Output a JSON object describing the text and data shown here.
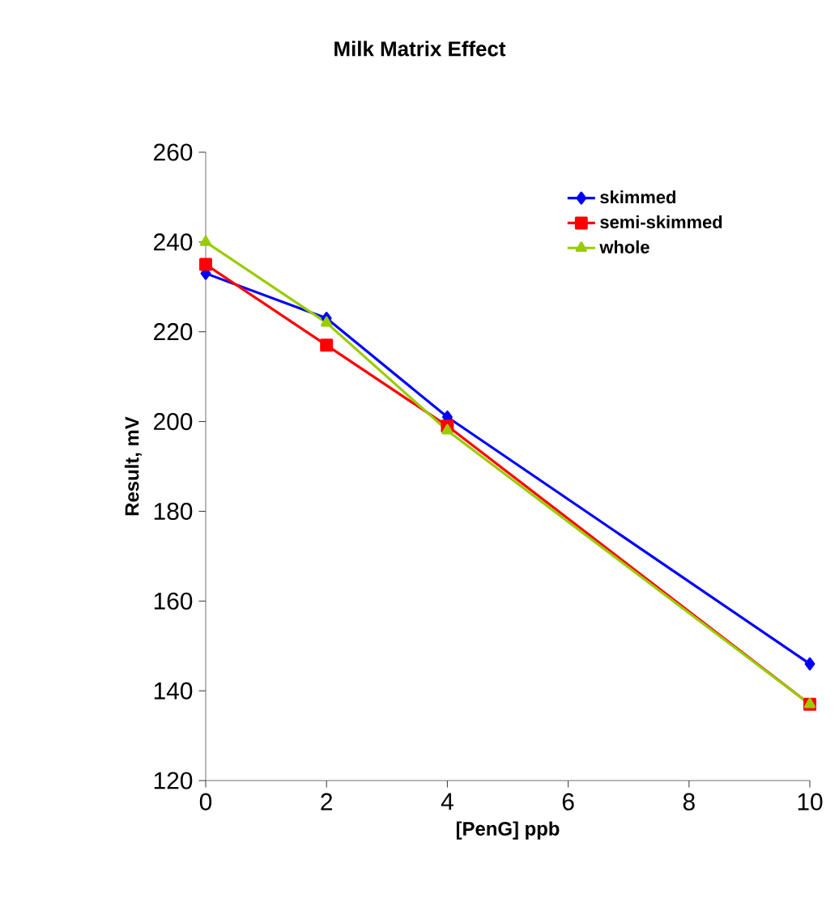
{
  "chart_data": {
    "type": "line",
    "title": "Milk Matrix Effect",
    "xlabel": "[PenG] ppb",
    "ylabel": "Result, mV",
    "x": [
      0,
      2,
      4,
      10
    ],
    "series": [
      {
        "name": "skimmed",
        "color": "#0000ff",
        "marker": "diamond",
        "values": [
          233,
          223,
          201,
          146
        ]
      },
      {
        "name": "semi-skimmed",
        "color": "#ff0000",
        "marker": "square",
        "values": [
          235,
          217,
          199,
          137
        ]
      },
      {
        "name": "whole",
        "color": "#99cc00",
        "marker": "triangle",
        "values": [
          240,
          222,
          198,
          137
        ]
      }
    ],
    "xlim": [
      0,
      10
    ],
    "xticks": [
      0,
      2,
      4,
      6,
      8,
      10
    ],
    "ylim": [
      120,
      260
    ],
    "yticks": [
      120,
      140,
      160,
      180,
      200,
      220,
      240,
      260
    ],
    "grid": false,
    "legend": "top right",
    "line_style": "solid"
  }
}
